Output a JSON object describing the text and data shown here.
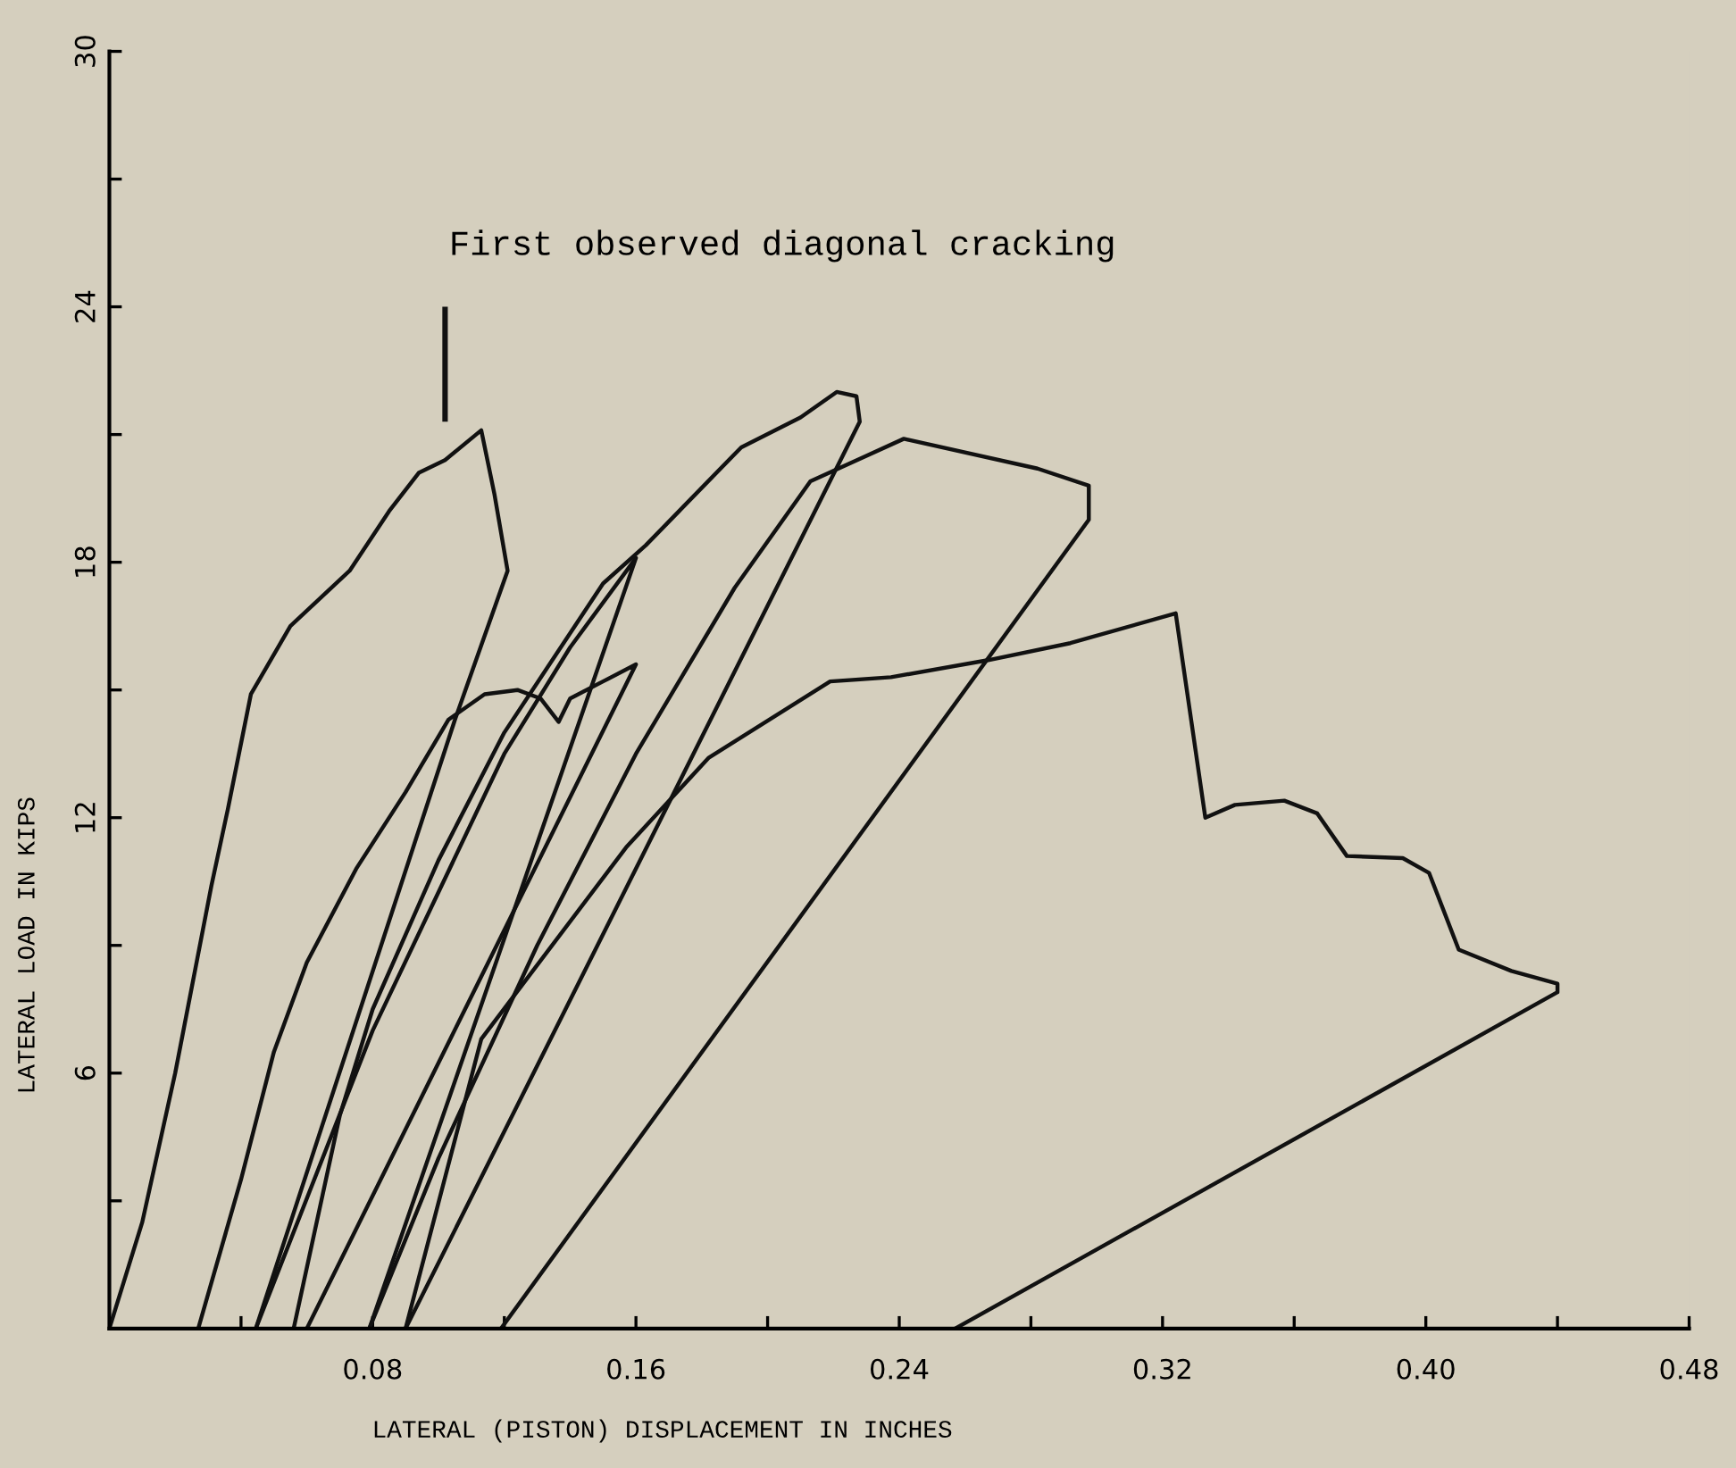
{
  "chart_data": {
    "type": "line",
    "xlabel": "LATERAL (PISTON) DISPLACEMENT IN INCHES",
    "ylabel": "LATERAL LOAD IN KIPS",
    "annotations": [
      "First observed diagonal cracking"
    ],
    "xlim": [
      0,
      0.48
    ],
    "ylim": [
      0,
      30
    ],
    "xticks": [
      {
        "value": 0.04,
        "label": null
      },
      0.08,
      {
        "value": 0.12,
        "label": null
      },
      0.16,
      {
        "value": 0.2,
        "label": null
      },
      0.24,
      {
        "value": 0.28,
        "label": null
      },
      0.32,
      {
        "value": 0.36,
        "label": null
      },
      {
        "value": 0.4,
        "label": "0.40"
      },
      {
        "value": 0.44,
        "label": null
      },
      0.48
    ],
    "yticks": [
      {
        "value": 3,
        "label": null
      },
      6,
      {
        "value": 9,
        "label": null
      },
      12,
      {
        "value": 15,
        "label": null
      },
      18,
      {
        "value": 21,
        "label": null
      },
      24,
      {
        "value": 27,
        "label": null
      },
      30
    ],
    "grid": false,
    "marker": "none",
    "line_style": "solid",
    "series": [
      {
        "color": "#111111",
        "x": [
          0,
          0.01,
          0.02,
          0.031,
          0.036,
          0.043,
          0.055,
          0.073,
          0.085,
          0.094,
          0.102,
          0.113,
          0.117,
          0.121,
          0.105,
          0.0445
        ],
        "values": [
          0,
          2.5,
          6,
          10.4,
          12.2,
          14.9,
          16.5,
          17.8,
          19.2,
          20.1,
          20.4,
          21.1,
          19.6,
          17.8,
          14.3,
          0
        ]
      },
      {
        "color": "#111111",
        "x": [
          0.027,
          0.04,
          0.05,
          0.06,
          0.075,
          0.09,
          0.103,
          0.114,
          0.124,
          0.131,
          0.1365,
          0.14,
          0.15,
          0.16,
          0.06
        ],
        "values": [
          0,
          3.5,
          6.5,
          8.6,
          10.8,
          12.6,
          14.3,
          14.9,
          15.0,
          14.8,
          14.25,
          14.8,
          15.2,
          15.6,
          0
        ]
      },
      {
        "color": "#111111",
        "x": [
          0.0445,
          0.08,
          0.12,
          0.14,
          0.16,
          0.079
        ],
        "values": [
          0,
          7,
          13.5,
          16,
          18.1,
          0
        ]
      },
      {
        "color": "#111111",
        "x": [
          0.056,
          0.07,
          0.08,
          0.1,
          0.12,
          0.15,
          0.163,
          0.192,
          0.21,
          0.221,
          0.227,
          0.228,
          0.09
        ],
        "values": [
          0,
          5,
          7.5,
          11,
          14,
          17.5,
          18.4,
          20.7,
          21.4,
          22.0,
          21.9,
          21.3,
          0
        ]
      },
      {
        "color": "#111111",
        "x": [
          0.079,
          0.1,
          0.13,
          0.16,
          0.19,
          0.213,
          0.2414,
          0.282,
          0.2976,
          0.2976,
          0.119
        ],
        "values": [
          0,
          4,
          9,
          13.5,
          17.4,
          19.9,
          20.9,
          20.2,
          19.8,
          19.0,
          0
        ]
      },
      {
        "color": "#111111",
        "x": [
          0.09,
          0.113,
          0.157,
          0.182,
          0.219,
          0.2375,
          0.267,
          0.292,
          0.324,
          0.333,
          0.342,
          0.357,
          0.367,
          0.376,
          0.393,
          0.401,
          0.41,
          0.426,
          0.44,
          0.44,
          0.257
        ],
        "values": [
          0,
          6.8,
          11.3,
          13.4,
          15.2,
          15.3,
          15.7,
          16.1,
          16.8,
          12.0,
          12.3,
          12.4,
          12.1,
          11.1,
          11.05,
          10.7,
          8.9,
          8.4,
          8.1,
          7.9,
          0
        ]
      }
    ]
  }
}
